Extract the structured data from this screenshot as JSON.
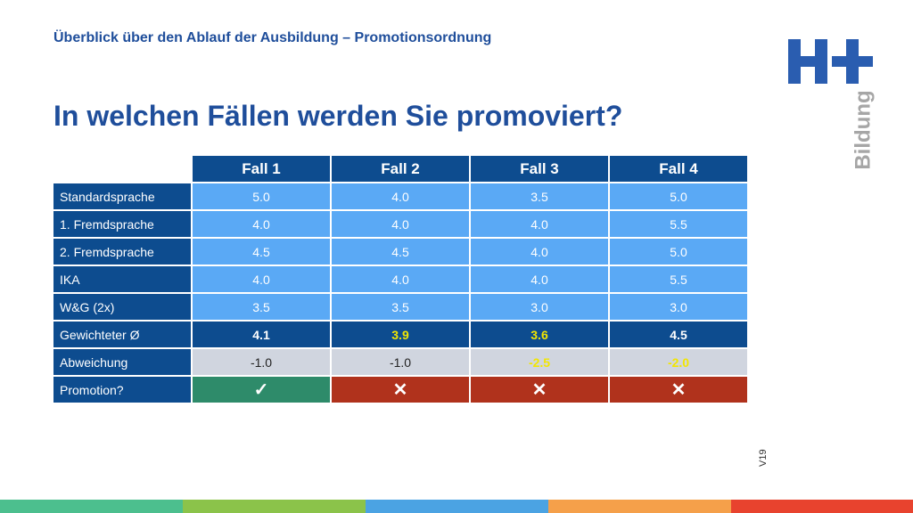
{
  "header": {
    "subtitle": "Überblick über den Ablauf der Ausbildung – Promotionsordnung",
    "title": "In welchen Fällen werden Sie promoviert?"
  },
  "logo": {
    "word": "Bildung",
    "color": "#2a5db0"
  },
  "table": {
    "columns": [
      "Fall 1",
      "Fall 2",
      "Fall 3",
      "Fall 4"
    ],
    "rows": [
      {
        "label": "Standardsprache",
        "values": [
          "5.0",
          "4.0",
          "3.5",
          "5.0"
        ]
      },
      {
        "label": "1. Fremdsprache",
        "values": [
          "4.0",
          "4.0",
          "4.0",
          "5.5"
        ]
      },
      {
        "label": "2. Fremdsprache",
        "values": [
          "4.5",
          "4.5",
          "4.0",
          "5.0"
        ]
      },
      {
        "label": "IKA",
        "values": [
          "4.0",
          "4.0",
          "4.0",
          "5.5"
        ]
      },
      {
        "label": "W&G (2x)",
        "values": [
          "3.5",
          "3.5",
          "3.0",
          "3.0"
        ]
      }
    ],
    "average": {
      "label": "Gewichteter  Ø",
      "values": [
        "4.1",
        "3.9",
        "3.6",
        "4.5"
      ]
    },
    "deviation": {
      "label": "Abweichung",
      "values": [
        "-1.0",
        "-1.0",
        "-2.5",
        "-2.0"
      ]
    },
    "promotion": {
      "label": "Promotion?",
      "values": [
        "✓",
        "✕",
        "✕",
        "✕"
      ]
    }
  },
  "footer": {
    "code": "V19"
  },
  "colors": {
    "green": "#4cbf8e",
    "lime": "#8bc34a",
    "blue": "#4ba3e3",
    "orange": "#f5a04a",
    "red": "#e8432e"
  }
}
